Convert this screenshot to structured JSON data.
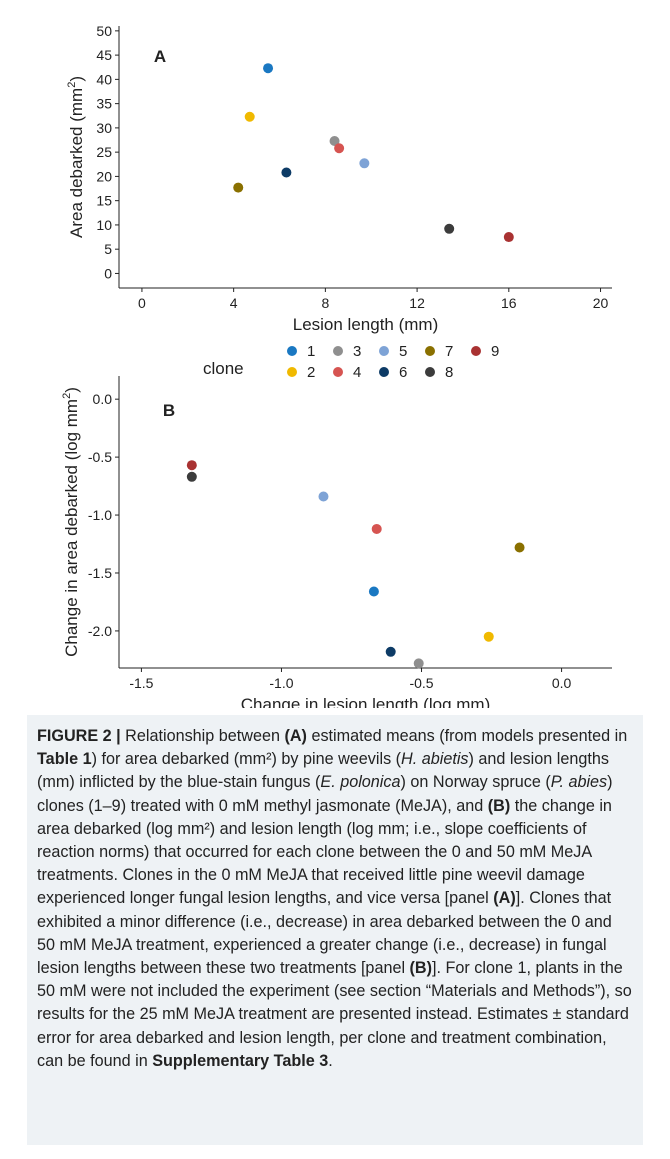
{
  "chart_data": [
    {
      "type": "scatter",
      "panel_label": "A",
      "xlabel": "Lesion length (mm)",
      "ylabel": "Area debarked (mm²)",
      "xlim": [
        -1,
        20.5
      ],
      "ylim": [
        -3,
        51
      ],
      "xticks": [
        0,
        4,
        8,
        12,
        16,
        20
      ],
      "yticks": [
        0,
        5,
        10,
        15,
        20,
        25,
        30,
        35,
        40,
        45,
        50
      ],
      "grid": false,
      "points": [
        {
          "clone": "1",
          "x": 5.5,
          "y": 42.3
        },
        {
          "clone": "2",
          "x": 4.7,
          "y": 32.3
        },
        {
          "clone": "3",
          "x": 8.4,
          "y": 27.3
        },
        {
          "clone": "4",
          "x": 8.6,
          "y": 25.8
        },
        {
          "clone": "5",
          "x": 9.7,
          "y": 22.7
        },
        {
          "clone": "6",
          "x": 6.3,
          "y": 20.8
        },
        {
          "clone": "7",
          "x": 4.2,
          "y": 17.7
        },
        {
          "clone": "8",
          "x": 13.4,
          "y": 9.2
        },
        {
          "clone": "9",
          "x": 16.0,
          "y": 7.5
        }
      ]
    },
    {
      "type": "scatter",
      "panel_label": "B",
      "xlabel": "Change in lesion length (log mm)",
      "ylabel": "Change in area debarked (log mm²)",
      "xlim": [
        -1.58,
        0.18
      ],
      "ylim": [
        -2.32,
        0.2
      ],
      "xticks": [
        -1.5,
        -1.0,
        -0.5,
        0.0
      ],
      "yticks": [
        0.0,
        -0.5,
        -1.0,
        -1.5,
        -2.0
      ],
      "grid": false,
      "points": [
        {
          "clone": "1",
          "x": -0.67,
          "y": -1.66
        },
        {
          "clone": "2",
          "x": -0.26,
          "y": -2.05
        },
        {
          "clone": "3",
          "x": -0.51,
          "y": -2.28
        },
        {
          "clone": "4",
          "x": -0.66,
          "y": -1.12
        },
        {
          "clone": "5",
          "x": -0.85,
          "y": -0.84
        },
        {
          "clone": "6",
          "x": -0.61,
          "y": -2.18
        },
        {
          "clone": "7",
          "x": -0.15,
          "y": -1.28
        },
        {
          "clone": "8",
          "x": -1.32,
          "y": -0.67
        },
        {
          "clone": "9",
          "x": -1.32,
          "y": -0.57
        }
      ]
    }
  ],
  "legend": {
    "title": "clone",
    "placement": "between panels",
    "entries": [
      {
        "label": "1",
        "color": "#1a78c2"
      },
      {
        "label": "2",
        "color": "#f0b900"
      },
      {
        "label": "3",
        "color": "#8f8f8f"
      },
      {
        "label": "4",
        "color": "#d65451"
      },
      {
        "label": "5",
        "color": "#7ea3d6"
      },
      {
        "label": "6",
        "color": "#0d3b66"
      },
      {
        "label": "7",
        "color": "#8a7000"
      },
      {
        "label": "8",
        "color": "#3c3c3c"
      },
      {
        "label": "9",
        "color": "#a93232"
      }
    ]
  },
  "caption": {
    "label": "FIGURE 2 |",
    "text_1": " Relationship between ",
    "bold_a1": "(A)",
    "text_2": " estimated means (from models presented in ",
    "bold_table": "Table 1",
    "text_3": ") for area debarked (mm²) by pine weevils (",
    "italic_1": "H. abietis",
    "text_4": ") and lesion lengths (mm) inflicted by the blue-stain fungus (",
    "italic_2": "E. polonica",
    "text_5": ") on Norway spruce (",
    "italic_3": "P. abies",
    "text_6": ") clones (1–9) treated with 0 mM methyl jasmonate (MeJA), and ",
    "bold_b1": "(B)",
    "text_7": " the change in area debarked (log mm²) and lesion length (log mm; i.e., slope coefficients of reaction norms) that occurred for each clone between the 0 and 50 mM MeJA treatments. Clones in the 0 mM MeJA that received little pine weevil damage experienced longer fungal lesion lengths, and vice versa [panel ",
    "bold_a2": "(A)",
    "text_8": "]. Clones that exhibited a minor difference (i.e., decrease) in area debarked between the 0 and 50 mM MeJA treatment, experienced a greater change (i.e., decrease) in fungal lesion lengths between these two treatments [panel ",
    "bold_b2": "(B)",
    "text_9": "]. For clone 1, plants in the 50 mM were not included the experiment (see section “Materials and Methods”), so results for the 25 mM MeJA treatment are presented instead. Estimates ± standard error for area debarked and lesion length, per clone and treatment combination, can be found in ",
    "bold_supp": "Supplementary Table 3",
    "text_10": "."
  }
}
